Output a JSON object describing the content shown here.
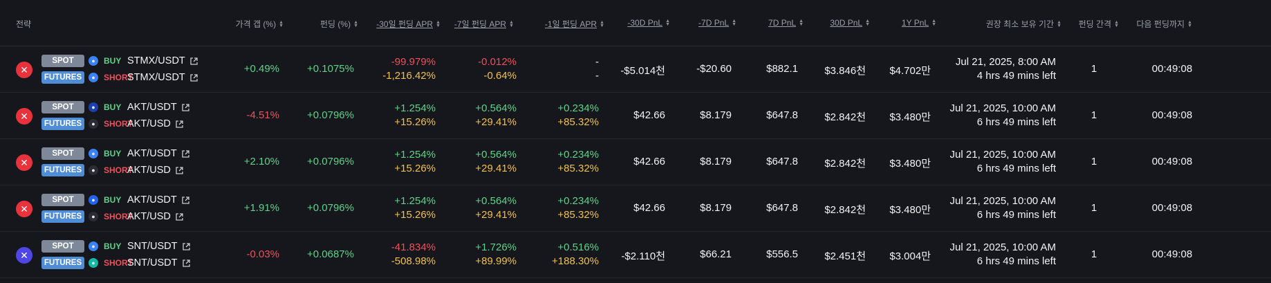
{
  "header": {
    "strategy": "전략",
    "price_gap": "가격 갭 (%)",
    "funding": "펀딩 (%)",
    "apr30": "-30일 펀딩 APR",
    "apr7": "-7일 펀딩 APR",
    "apr1": "-1일 펀딩 APR",
    "pnl30m": "-30D PnL",
    "pnl7m": "-7D PnL",
    "pnl7": "7D PnL",
    "pnl30": "30D PnL",
    "pnl1y": "1Y PnL",
    "hold": "권장 최소 보유 기간",
    "interval": "펀딩 간격",
    "next": "다음 펀딩까지"
  },
  "badges": {
    "spot": "SPOT",
    "futures": "FUTURES"
  },
  "sides": {
    "buy": "BUY",
    "short": "SHORT"
  },
  "rows": [
    {
      "coin_color": "#e8323c",
      "spot_exchange_icon": "cycle-exchange-icon",
      "spot_exchange_color": "#3b82f6",
      "spot_symbol": "STMX/USDT",
      "fut_exchange_icon": "cycle-exchange-icon",
      "fut_exchange_color": "#3b82f6",
      "fut_symbol": "STMX/USDT",
      "price_gap": "+0.49%",
      "price_gap_color": "green",
      "funding": "+0.1075%",
      "apr30_a": "-99.979%",
      "apr30_a_color": "red",
      "apr30_b": "-1,216.42%",
      "apr7_a": "-0.012%",
      "apr7_a_color": "red",
      "apr7_b": "-0.64%",
      "apr1_a": "-",
      "apr1_a_color": "white",
      "apr1_b": "-",
      "apr1_b_color": "white",
      "pnl30m": "-$5.014천",
      "pnl7m": "-$20.60",
      "pnl7": "$882.1",
      "pnl30": "$3.846천",
      "pnl1y": "$4.702만",
      "hold_date": "Jul 21, 2025, 8:00 AM",
      "hold_left": "4 hrs 49 mins left",
      "interval": "1",
      "next": "00:49:08"
    },
    {
      "coin_color": "#e8323c",
      "spot_exchange_icon": "up-exchange-icon",
      "spot_exchange_color": "#1e40af",
      "spot_symbol": "AKT/USDT",
      "fut_exchange_icon": "x-exchange-icon",
      "fut_exchange_color": "#2a2d34",
      "fut_symbol": "AKT/USD",
      "price_gap": "-4.51%",
      "price_gap_color": "red",
      "funding": "+0.0796%",
      "apr30_a": "+1.254%",
      "apr30_a_color": "green",
      "apr30_b": "+15.26%",
      "apr7_a": "+0.564%",
      "apr7_a_color": "green",
      "apr7_b": "+29.41%",
      "apr1_a": "+0.234%",
      "apr1_a_color": "green",
      "apr1_b": "+85.32%",
      "apr1_b_color": "yellow",
      "pnl30m": "$42.66",
      "pnl7m": "$8.179",
      "pnl7": "$647.8",
      "pnl30": "$2.842천",
      "pnl1y": "$3.480만",
      "hold_date": "Jul 21, 2025, 10:00 AM",
      "hold_left": "6 hrs 49 mins left",
      "interval": "1",
      "next": "00:49:08"
    },
    {
      "coin_color": "#e8323c",
      "spot_exchange_icon": "cycle-exchange-icon",
      "spot_exchange_color": "#3b82f6",
      "spot_symbol": "AKT/USDT",
      "fut_exchange_icon": "x-exchange-icon",
      "fut_exchange_color": "#2a2d34",
      "fut_symbol": "AKT/USD",
      "price_gap": "+2.10%",
      "price_gap_color": "green",
      "funding": "+0.0796%",
      "apr30_a": "+1.254%",
      "apr30_a_color": "green",
      "apr30_b": "+15.26%",
      "apr7_a": "+0.564%",
      "apr7_a_color": "green",
      "apr7_b": "+29.41%",
      "apr1_a": "+0.234%",
      "apr1_a_color": "green",
      "apr1_b": "+85.32%",
      "apr1_b_color": "yellow",
      "pnl30m": "$42.66",
      "pnl7m": "$8.179",
      "pnl7": "$647.8",
      "pnl30": "$2.842천",
      "pnl1y": "$3.480만",
      "hold_date": "Jul 21, 2025, 10:00 AM",
      "hold_left": "6 hrs 49 mins left",
      "interval": "1",
      "next": "00:49:08"
    },
    {
      "coin_color": "#e8323c",
      "spot_exchange_icon": "flame-exchange-icon",
      "spot_exchange_color": "#2563eb",
      "spot_symbol": "AKT/USDT",
      "fut_exchange_icon": "x-exchange-icon",
      "fut_exchange_color": "#2a2d34",
      "fut_symbol": "AKT/USD",
      "price_gap": "+1.91%",
      "price_gap_color": "green",
      "funding": "+0.0796%",
      "apr30_a": "+1.254%",
      "apr30_a_color": "green",
      "apr30_b": "+15.26%",
      "apr7_a": "+0.564%",
      "apr7_a_color": "green",
      "apr7_b": "+29.41%",
      "apr1_a": "+0.234%",
      "apr1_a_color": "green",
      "apr1_b": "+85.32%",
      "apr1_b_color": "yellow",
      "pnl30m": "$42.66",
      "pnl7m": "$8.179",
      "pnl7": "$647.8",
      "pnl30": "$2.842천",
      "pnl1y": "$3.480만",
      "hold_date": "Jul 21, 2025, 10:00 AM",
      "hold_left": "6 hrs 49 mins left",
      "interval": "1",
      "next": "00:49:08"
    },
    {
      "coin_color": "#4f46e5",
      "spot_exchange_icon": "cloud-exchange-icon",
      "spot_exchange_color": "#3b82f6",
      "spot_symbol": "SNT/USDT",
      "fut_exchange_icon": "swirl-exchange-icon",
      "fut_exchange_color": "#14b8a6",
      "fut_symbol": "SNT/USDT",
      "price_gap": "-0.03%",
      "price_gap_color": "red",
      "funding": "+0.0687%",
      "apr30_a": "-41.834%",
      "apr30_a_color": "red",
      "apr30_b": "-508.98%",
      "apr7_a": "+1.726%",
      "apr7_a_color": "green",
      "apr7_b": "+89.99%",
      "apr1_a": "+0.516%",
      "apr1_a_color": "green",
      "apr1_b": "+188.30%",
      "apr1_b_color": "yellow",
      "pnl30m": "-$2.110천",
      "pnl7m": "$66.21",
      "pnl7": "$556.5",
      "pnl30": "$2.451천",
      "pnl1y": "$3.004만",
      "hold_date": "Jul 21, 2025, 10:00 AM",
      "hold_left": "6 hrs 49 mins left",
      "interval": "1",
      "next": "00:49:08"
    }
  ]
}
